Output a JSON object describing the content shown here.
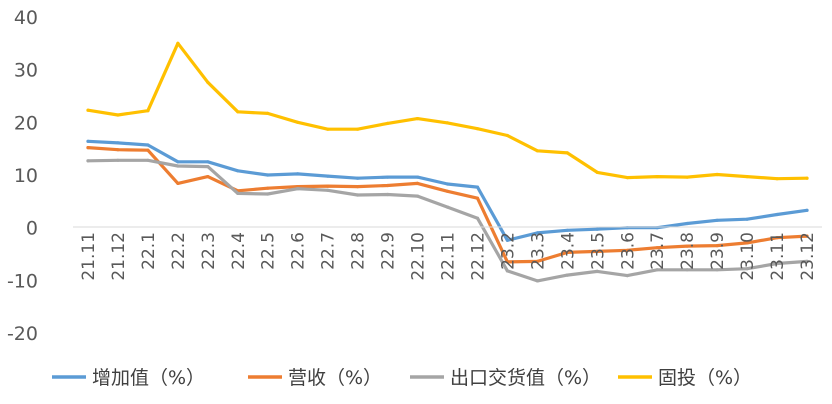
{
  "chart_data": {
    "type": "line",
    "title": "",
    "xlabel": "",
    "ylabel": "",
    "ylim": [
      -20,
      40
    ],
    "yticks": [
      40,
      30,
      20,
      10,
      0,
      -10,
      -20
    ],
    "grid": false,
    "legend_position": "bottom",
    "categories": [
      "21.11",
      "21.12",
      "22.1",
      "22.2",
      "22.3",
      "22.4",
      "22.5",
      "22.6",
      "22.7",
      "22.8",
      "22.9",
      "22.10",
      "22.11",
      "22.12",
      "23.2",
      "23.3",
      "23.4",
      "23.5",
      "23.6",
      "23.7",
      "23.8",
      "23.9",
      "23.10",
      "23.11",
      "23.12"
    ],
    "series": [
      {
        "name": "增加值（%）",
        "color": "#5B9BD5",
        "values": [
          16.4,
          16.1,
          15.7,
          12.5,
          12.5,
          10.8,
          10.0,
          10.2,
          9.8,
          9.4,
          9.6,
          9.6,
          8.3,
          7.7,
          -2.4,
          -1.0,
          -0.5,
          -0.3,
          0.0,
          0.0,
          0.8,
          1.4,
          1.6,
          2.5,
          3.3
        ]
      },
      {
        "name": "营收（%）",
        "color": "#ED7D31",
        "values": [
          15.2,
          14.8,
          14.7,
          8.4,
          9.7,
          7.0,
          7.5,
          7.8,
          7.9,
          7.8,
          8.0,
          8.4,
          6.9,
          5.6,
          -6.5,
          -6.4,
          -4.7,
          -4.5,
          -4.3,
          -3.8,
          -3.5,
          -3.4,
          -2.9,
          -1.9,
          -1.6
        ]
      },
      {
        "name": "出口交货值（%）",
        "color": "#A5A5A5",
        "values": [
          12.7,
          12.8,
          12.8,
          11.7,
          11.6,
          6.5,
          6.4,
          7.4,
          7.1,
          6.2,
          6.3,
          6.0,
          3.9,
          1.8,
          -8.2,
          -10.1,
          -9.0,
          -8.3,
          -9.1,
          -8.0,
          -8.0,
          -8.0,
          -7.8,
          -6.8,
          -6.4
        ]
      },
      {
        "name": "固投（%）",
        "color": "#FFC000",
        "values": [
          22.3,
          21.4,
          22.2,
          35.0,
          27.6,
          22.0,
          21.7,
          20.0,
          18.7,
          18.7,
          19.8,
          20.7,
          19.9,
          18.8,
          17.5,
          14.6,
          14.2,
          10.5,
          9.5,
          9.7,
          9.6,
          10.1,
          9.7,
          9.3,
          9.4
        ]
      }
    ]
  }
}
